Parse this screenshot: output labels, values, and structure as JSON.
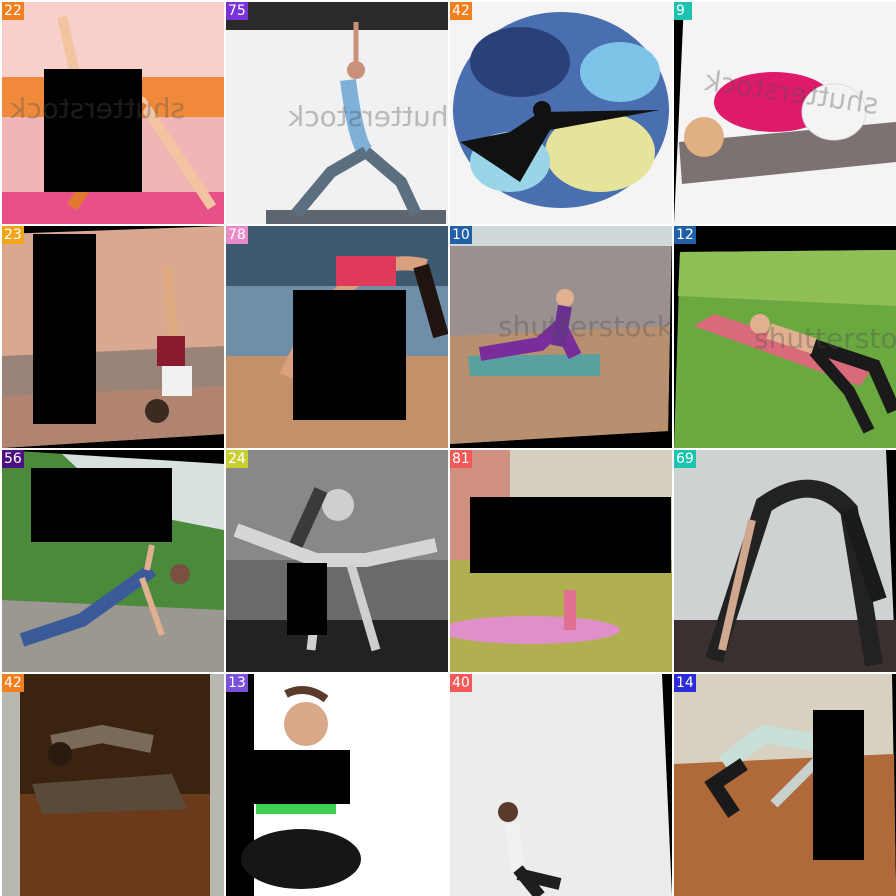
{
  "tiles": [
    {
      "label": "22",
      "color": "#f07f1e",
      "watermark": "shutterstock",
      "watermark_mirrored": true
    },
    {
      "label": "75",
      "color": "#7a33d9",
      "watermark": "shutterstock",
      "watermark_mirrored": true
    },
    {
      "label": "42",
      "color": "#f07f1e",
      "watermark": "",
      "watermark_mirrored": false
    },
    {
      "label": "9",
      "color": "#1bc3b0",
      "watermark": "shutterstock",
      "watermark_mirrored": true
    },
    {
      "label": "23",
      "color": "#f2a516",
      "watermark": "",
      "watermark_mirrored": false
    },
    {
      "label": "78",
      "color": "#e98bc6",
      "watermark": "",
      "watermark_mirrored": false
    },
    {
      "label": "10",
      "color": "#2060a8",
      "watermark": "shutterstock",
      "watermark_mirrored": false
    },
    {
      "label": "12",
      "color": "#2060a8",
      "watermark": "shutterstock",
      "watermark_mirrored": false
    },
    {
      "label": "56",
      "color": "#4c1180",
      "watermark": "",
      "watermark_mirrored": false
    },
    {
      "label": "24",
      "color": "#c8cf35",
      "watermark": "",
      "watermark_mirrored": false
    },
    {
      "label": "81",
      "color": "#f25a5a",
      "watermark": "",
      "watermark_mirrored": false
    },
    {
      "label": "69",
      "color": "#1bc3b0",
      "watermark": "",
      "watermark_mirrored": false
    },
    {
      "label": "42",
      "color": "#f07f1e",
      "watermark": "",
      "watermark_mirrored": false
    },
    {
      "label": "13",
      "color": "#7a4fd9",
      "watermark": "",
      "watermark_mirrored": false
    },
    {
      "label": "40",
      "color": "#f25a5a",
      "watermark": "",
      "watermark_mirrored": false
    },
    {
      "label": "14",
      "color": "#2a2ad9",
      "watermark": "",
      "watermark_mirrored": false
    }
  ]
}
